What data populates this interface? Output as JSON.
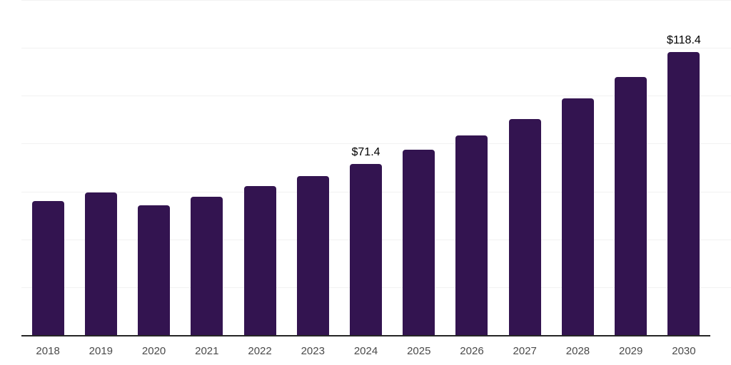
{
  "chart_data": {
    "type": "bar",
    "title": "",
    "xlabel": "",
    "ylabel": "",
    "categories": [
      "2018",
      "2019",
      "2020",
      "2021",
      "2022",
      "2023",
      "2024",
      "2025",
      "2026",
      "2027",
      "2028",
      "2029",
      "2030"
    ],
    "values": [
      55.9,
      59.5,
      54.1,
      57.7,
      62.2,
      66.3,
      71.4,
      77.4,
      83.4,
      90.3,
      98.9,
      107.9,
      118.4
    ],
    "bar_labels": [
      "",
      "",
      "",
      "",
      "",
      "",
      "$71.4",
      "",
      "",
      "",
      "",
      "",
      "$118.4"
    ],
    "ylim": [
      0,
      140
    ],
    "gridline_values": [
      20,
      40,
      60,
      80,
      100,
      120,
      140
    ],
    "grid": true,
    "legend": false,
    "y_axis_labels_visible": false,
    "colors": {
      "bar": "#331450",
      "axis_line": "#262626",
      "gridline": "#f2f2f2",
      "tick_label": "#4a4a4a",
      "value_label": "#000000",
      "background": "#ffffff"
    }
  }
}
